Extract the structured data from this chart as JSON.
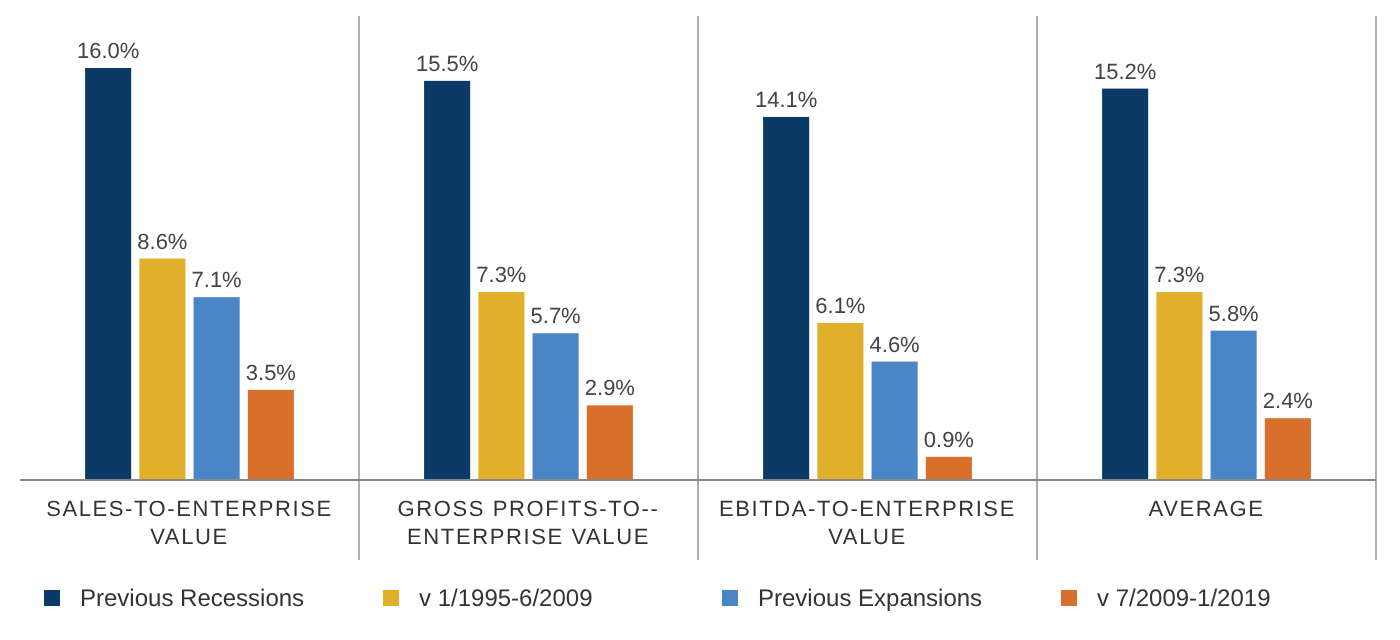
{
  "chart_data": {
    "type": "bar",
    "categories": [
      "SALES-TO-ENTERPRISE VALUE",
      "GROSS PROFITS-TO--ENTERPRISE VALUE",
      "EBITDA-TO-ENTERPRISE VALUE",
      "AVERAGE"
    ],
    "series": [
      {
        "name": "Previous Recessions",
        "color": "#0b3a66",
        "values": [
          16.0,
          15.5,
          14.1,
          15.2
        ],
        "value_labels": [
          "16.0%",
          "15.5%",
          "14.1%",
          "15.2%"
        ]
      },
      {
        "name": "v 1/1995-6/2009",
        "color": "#e0b02a",
        "values": [
          8.6,
          7.3,
          6.1,
          7.3
        ],
        "value_labels": [
          "8.6%",
          "7.3%",
          "6.1%",
          "7.3%"
        ]
      },
      {
        "name": "Previous Expansions",
        "color": "#4a86c5",
        "values": [
          7.1,
          5.7,
          4.6,
          5.8
        ],
        "value_labels": [
          "7.1%",
          "5.7%",
          "4.6%",
          "5.8%"
        ]
      },
      {
        "name": "v 7/2009-1/2019",
        "color": "#d8702b",
        "values": [
          3.5,
          2.9,
          0.9,
          2.4
        ],
        "value_labels": [
          "3.5%",
          "2.9%",
          "0.9%",
          "2.4%"
        ]
      }
    ],
    "legend": "bottom",
    "grid": false
  }
}
